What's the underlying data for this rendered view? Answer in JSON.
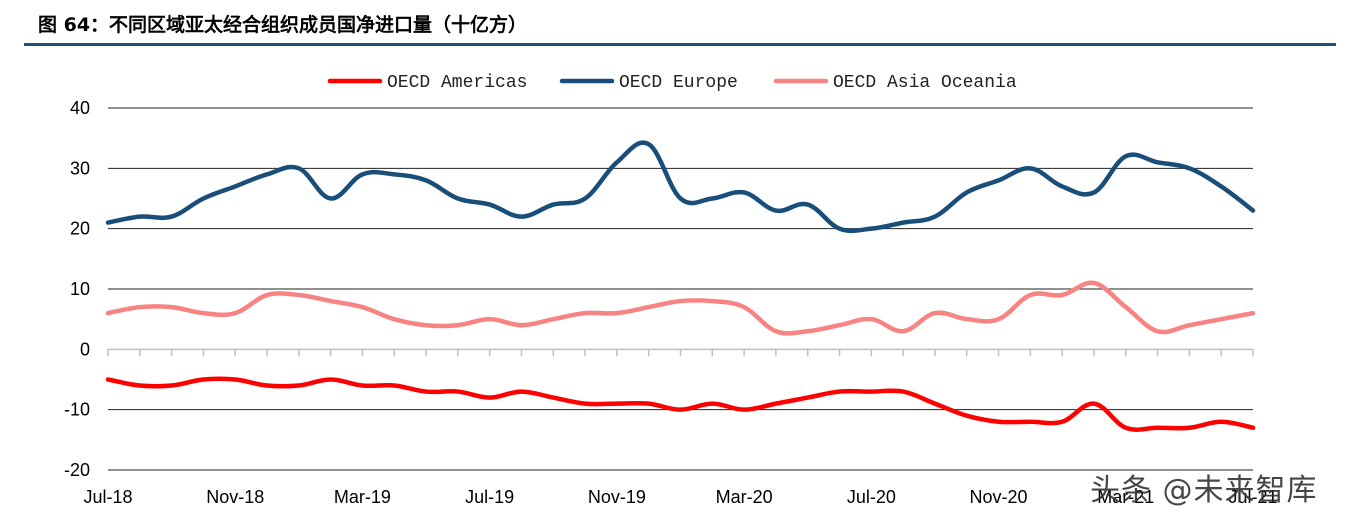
{
  "figure": {
    "title": "图 64：不同区域亚太经合组织成员国净进口量（十亿方）"
  },
  "watermark": "头条 @未来智库",
  "colors": {
    "title_rule": "#1f4e79",
    "americas": "#ff0000",
    "europe": "#1a4e7a",
    "asia": "#f78383"
  },
  "chart_data": {
    "type": "line",
    "title": "图 64：不同区域亚太经合组织成员国净进口量（十亿方）",
    "xlabel": "",
    "ylabel": "",
    "ylim": [
      -20,
      40
    ],
    "yticks": [
      40,
      30,
      20,
      10,
      0,
      -10,
      -20
    ],
    "grid": true,
    "legend_position": "top-center",
    "x_tick_labels": [
      "Jul-18",
      "Nov-18",
      "Mar-19",
      "Jul-19",
      "Nov-19",
      "Mar-20",
      "Jul-20",
      "Nov-20",
      "Mar-21",
      "Jul-21"
    ],
    "x": [
      "Jul-18",
      "Aug-18",
      "Sep-18",
      "Oct-18",
      "Nov-18",
      "Dec-18",
      "Jan-19",
      "Feb-19",
      "Mar-19",
      "Apr-19",
      "May-19",
      "Jun-19",
      "Jul-19",
      "Aug-19",
      "Sep-19",
      "Oct-19",
      "Nov-19",
      "Dec-19",
      "Jan-20",
      "Feb-20",
      "Mar-20",
      "Apr-20",
      "May-20",
      "Jun-20",
      "Jul-20",
      "Aug-20",
      "Sep-20",
      "Oct-20",
      "Nov-20",
      "Dec-20",
      "Jan-21",
      "Feb-21",
      "Mar-21",
      "Apr-21",
      "May-21",
      "Jun-21",
      "Jul-21"
    ],
    "series": [
      {
        "name": "OECD Americas",
        "color": "#ff0000",
        "values": [
          -5,
          -6,
          -6,
          -5,
          -5,
          -6,
          -6,
          -5,
          -6,
          -6,
          -7,
          -7,
          -8,
          -7,
          -8,
          -9,
          -9,
          -9,
          -10,
          -9,
          -10,
          -9,
          -8,
          -7,
          -7,
          -7,
          -9,
          -11,
          -12,
          -12,
          -12,
          -9,
          -13,
          -13,
          -13,
          -12,
          -13
        ]
      },
      {
        "name": "OECD Europe",
        "color": "#1a4e7a",
        "values": [
          21,
          22,
          22,
          25,
          27,
          29,
          30,
          25,
          29,
          29,
          28,
          25,
          24,
          22,
          24,
          25,
          31,
          34,
          25,
          25,
          26,
          23,
          24,
          20,
          20,
          21,
          22,
          26,
          28,
          30,
          27,
          26,
          32,
          31,
          30,
          27,
          23
        ]
      },
      {
        "name": "OECD Asia Oceania",
        "color": "#f78383",
        "values": [
          6,
          7,
          7,
          6,
          6,
          9,
          9,
          8,
          7,
          5,
          4,
          4,
          5,
          4,
          5,
          6,
          6,
          7,
          8,
          8,
          7,
          3,
          3,
          4,
          5,
          3,
          6,
          5,
          5,
          9,
          9,
          11,
          7,
          3,
          4,
          5,
          6
        ]
      }
    ]
  }
}
